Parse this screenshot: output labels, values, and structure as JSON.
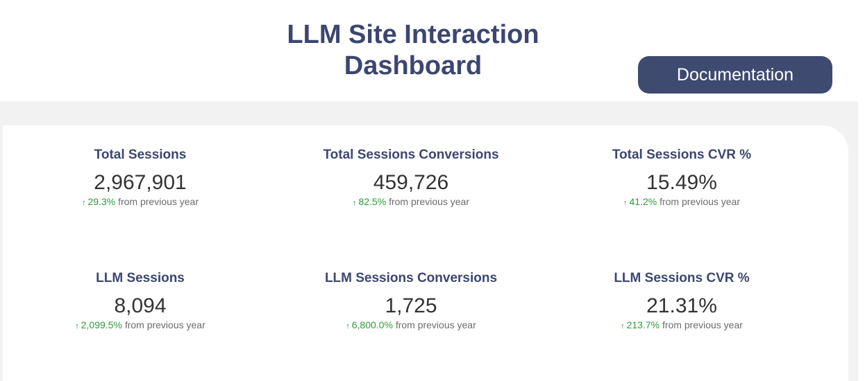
{
  "header": {
    "title_line1": "LLM Site Interaction",
    "title_line2": "Dashboard",
    "documentation_label": "Documentation"
  },
  "metrics": [
    {
      "title": "Total Sessions",
      "value": "2,967,901",
      "delta_pct": "29.3%",
      "delta_text": "from previous year",
      "arrow": "↑"
    },
    {
      "title": "Total Sessions Conversions",
      "value": "459,726",
      "delta_pct": "82.5%",
      "delta_text": "from previous year",
      "arrow": "↑"
    },
    {
      "title": "Total Sessions CVR %",
      "value": "15.49%",
      "delta_pct": "41.2%",
      "delta_text": "from previous year",
      "arrow": "↑"
    },
    {
      "title": "LLM Sessions",
      "value": "8,094",
      "delta_pct": "2,099.5%",
      "delta_text": "from previous year",
      "arrow": "↑"
    },
    {
      "title": "LLM Sessions Conversions",
      "value": "1,725",
      "delta_pct": "6,800.0%",
      "delta_text": "from previous year",
      "arrow": "↑"
    },
    {
      "title": "LLM Sessions CVR %",
      "value": "21.31%",
      "delta_pct": "213.7%",
      "delta_text": "from previous year",
      "arrow": "↑"
    }
  ],
  "colors": {
    "title": "#3c4670",
    "button_bg": "#3f4a71",
    "positive": "#2e9a3c",
    "band": "#f2f2f2"
  },
  "icons": {
    "delta_arrow": "arrow-up-icon"
  }
}
